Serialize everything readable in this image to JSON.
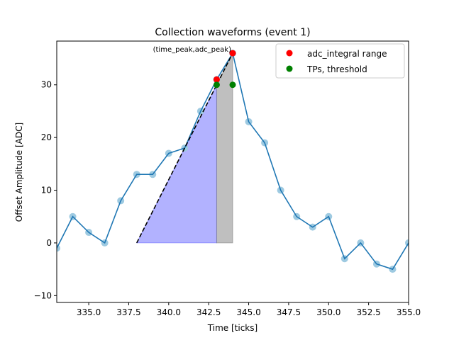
{
  "chart_data": {
    "type": "line",
    "title": "Collection waveforms (event 1)",
    "xlabel": "Time [ticks]",
    "ylabel": "Offset Amplitude [ADC]",
    "xlim": [
      333,
      355
    ],
    "ylim": [
      -11.3,
      38.3
    ],
    "grid": false,
    "legend_position": "top-right",
    "xticks": [
      335.0,
      337.5,
      340.0,
      342.5,
      345.0,
      347.5,
      350.0,
      352.5,
      355.0
    ],
    "xtick_labels": [
      "335.0",
      "337.5",
      "340.0",
      "342.5",
      "345.0",
      "347.5",
      "350.0",
      "352.5",
      "355.0"
    ],
    "yticks": [
      -10,
      0,
      10,
      20,
      30
    ],
    "ytick_labels": [
      "−10",
      "0",
      "10",
      "20",
      "30"
    ],
    "waveform": {
      "x": [
        333,
        334,
        335,
        336,
        337,
        338,
        339,
        340,
        341,
        342,
        343,
        344,
        345,
        346,
        347,
        348,
        349,
        350,
        351,
        352,
        353,
        354,
        355
      ],
      "y": [
        -1,
        5,
        2,
        0,
        8,
        13,
        13,
        17,
        18,
        25,
        31,
        36,
        23,
        19,
        10,
        5,
        3,
        5,
        -3,
        0,
        -4,
        -5,
        0
      ],
      "line_color": "#1f77b4",
      "marker_color": "#9ecae1"
    },
    "dashed_fit": {
      "x": [
        338,
        344
      ],
      "y": [
        0,
        36
      ],
      "color": "#000000"
    },
    "blue_area": {
      "x0": 338,
      "x1": 343,
      "y_top": 30,
      "color": "#0000ff"
    },
    "grey_area": {
      "x0": 343,
      "x1": 344,
      "y_top_left": 30,
      "y_top_right": 36,
      "color": "#808080"
    },
    "adc_integral_points": {
      "x": [
        343,
        344
      ],
      "y": [
        31,
        36
      ],
      "color": "#ff0000"
    },
    "tp_points": {
      "x": [
        343,
        344
      ],
      "y": [
        30,
        30
      ],
      "color": "#008000"
    },
    "annotation": {
      "text": "(time_peak,adc_peak)",
      "x": 344,
      "y": 36
    },
    "legend": [
      {
        "label": "adc_integral range",
        "color": "#ff0000"
      },
      {
        "label": "TPs, threshold",
        "color": "#008000"
      }
    ]
  }
}
